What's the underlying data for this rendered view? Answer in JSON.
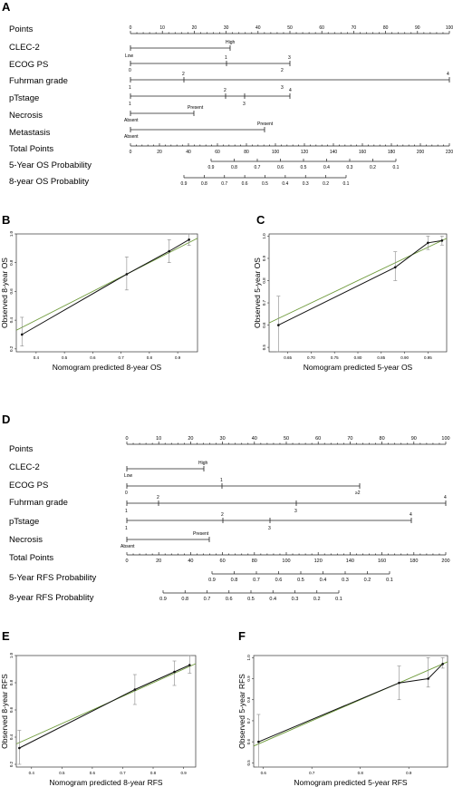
{
  "panels": {
    "A": "A",
    "B": "B",
    "C": "C",
    "D": "D",
    "E": "E",
    "F": "F"
  },
  "nomogram_os": {
    "rows": {
      "points": "Points",
      "clec2": "CLEC-2",
      "ecog": "ECOG PS",
      "fuhrman": "Fuhrman grade",
      "ptstage": "pTstage",
      "necrosis": "Necrosis",
      "metastasis": "Metastasis",
      "total": "Total Points",
      "os5": "5-Year OS Probability",
      "os8": "8-year OS Probablity"
    },
    "points_ticks": [
      "0",
      "10",
      "20",
      "30",
      "40",
      "50",
      "60",
      "70",
      "80",
      "90",
      "100"
    ],
    "total_ticks": [
      "0",
      "20",
      "40",
      "60",
      "80",
      "100",
      "120",
      "140",
      "160",
      "180",
      "200",
      "220"
    ],
    "clec2_labels": {
      "low": "Low",
      "high": "High"
    },
    "ecog_labels": [
      "0",
      "1",
      "2",
      "3"
    ],
    "fuhrman_labels": [
      "1",
      "2",
      "3",
      "4"
    ],
    "ptstage_labels": [
      "1",
      "2",
      "3",
      "4"
    ],
    "necrosis_labels": {
      "absent": "Absent",
      "present": "Present"
    },
    "metastasis_labels": {
      "absent": "Absent",
      "present": "Present"
    },
    "os5_ticks": [
      "0.9",
      "0.8",
      "0.7",
      "0.6",
      "0.5",
      "0.4",
      "0.3",
      "0.2",
      "0.1"
    ],
    "os8_ticks": [
      "0.9",
      "0.8",
      "0.7",
      "0.6",
      "0.5",
      "0.4",
      "0.3",
      "0.2",
      "0.1"
    ]
  },
  "nomogram_rfs": {
    "rows": {
      "points": "Points",
      "clec2": "CLEC-2",
      "ecog": "ECOG PS",
      "fuhrman": "Fuhrman grade",
      "ptstage": "pTstage",
      "necrosis": "Necrosis",
      "total": "Total Points",
      "rfs5": "5-Year RFS Probability",
      "rfs8": "8-year RFS Probablity"
    },
    "points_ticks": [
      "0",
      "10",
      "20",
      "30",
      "40",
      "50",
      "60",
      "70",
      "80",
      "90",
      "100"
    ],
    "total_ticks": [
      "0",
      "20",
      "40",
      "60",
      "80",
      "100",
      "120",
      "140",
      "160",
      "180",
      "200"
    ],
    "clec2_labels": {
      "low": "Low",
      "high": "High"
    },
    "ecog_labels": [
      "0",
      "1",
      "≥2"
    ],
    "fuhrman_labels": [
      "1",
      "2",
      "3",
      "4"
    ],
    "ptstage_labels": [
      "1",
      "2",
      "3",
      "4"
    ],
    "necrosis_labels": {
      "absent": "Absent",
      "present": "Present"
    },
    "rfs5_ticks": [
      "0.9",
      "0.8",
      "0.7",
      "0.6",
      "0.5",
      "0.4",
      "0.3",
      "0.2",
      "0.1"
    ],
    "rfs8_ticks": [
      "0.9",
      "0.8",
      "0.7",
      "0.6",
      "0.5",
      "0.4",
      "0.3",
      "0.2",
      "0.1"
    ]
  },
  "chart_data": [
    {
      "panel": "B",
      "type": "line",
      "xlabel": "Nomogram predicted 8-year OS",
      "ylabel": "Observed 8-year OS",
      "xlim": [
        0.33,
        0.97
      ],
      "ylim": [
        0.18,
        1.0
      ],
      "xticks": [
        "0.4",
        "0.5",
        "0.6",
        "0.7",
        "0.8",
        "0.9"
      ],
      "yticks": [
        "0.2",
        "0.4",
        "0.6",
        "0.8",
        "1.0"
      ],
      "points": [
        [
          0.35,
          0.3
        ],
        [
          0.72,
          0.72
        ],
        [
          0.87,
          0.88
        ],
        [
          0.94,
          0.96
        ]
      ],
      "errors": [
        [
          0.22,
          0.42
        ],
        [
          0.61,
          0.84
        ],
        [
          0.8,
          0.96
        ],
        [
          0.92,
          1.0
        ]
      ],
      "ideal_line": [
        [
          0.33,
          0.33
        ],
        [
          0.97,
          0.97
        ]
      ]
    },
    {
      "panel": "C",
      "type": "line",
      "xlabel": "Nomogram predicted 5-year OS",
      "ylabel": "Observed 5-year OS",
      "xlim": [
        0.61,
        0.99
      ],
      "ylim": [
        0.48,
        1.01
      ],
      "xticks": [
        "0.65",
        "0.70",
        "0.75",
        "0.80",
        "0.85",
        "0.90",
        "0.95"
      ],
      "yticks": [
        "0.5",
        "0.6",
        "0.7",
        "0.8",
        "0.9",
        "1.0"
      ],
      "points": [
        [
          0.63,
          0.6
        ],
        [
          0.88,
          0.86
        ],
        [
          0.95,
          0.97
        ],
        [
          0.98,
          0.98
        ]
      ],
      "errors": [
        [
          0.48,
          0.73
        ],
        [
          0.8,
          0.93
        ],
        [
          0.94,
          1.0
        ],
        [
          0.96,
          1.0
        ]
      ],
      "ideal_line": [
        [
          0.61,
          0.61
        ],
        [
          0.99,
          0.99
        ]
      ]
    },
    {
      "panel": "E",
      "type": "line",
      "xlabel": "Nomogram predicted 8-year RFS",
      "ylabel": "Observed 8-year RFS",
      "xlim": [
        0.35,
        0.94
      ],
      "ylim": [
        0.18,
        1.0
      ],
      "xticks": [
        "0.4",
        "0.5",
        "0.6",
        "0.7",
        "0.8",
        "0.9"
      ],
      "yticks": [
        "0.2",
        "0.4",
        "0.6",
        "0.8",
        "1.0"
      ],
      "points": [
        [
          0.36,
          0.32
        ],
        [
          0.74,
          0.75
        ],
        [
          0.87,
          0.88
        ],
        [
          0.92,
          0.93
        ]
      ],
      "errors": [
        [
          0.2,
          0.45
        ],
        [
          0.64,
          0.86
        ],
        [
          0.78,
          0.96
        ],
        [
          0.87,
          1.0
        ]
      ],
      "ideal_line": [
        [
          0.35,
          0.35
        ],
        [
          0.94,
          0.94
        ]
      ]
    },
    {
      "panel": "F",
      "type": "line",
      "xlabel": "Nomogram predicted 5-year RFS",
      "ylabel": "Observed 5-year RFS",
      "xlim": [
        0.58,
        0.98
      ],
      "ylim": [
        0.48,
        1.01
      ],
      "xticks": [
        "0.6",
        "0.7",
        "0.8",
        "0.9"
      ],
      "yticks": [
        "0.5",
        "0.6",
        "0.7",
        "0.8",
        "0.9",
        "1.0"
      ],
      "points": [
        [
          0.59,
          0.6
        ],
        [
          0.88,
          0.88
        ],
        [
          0.94,
          0.9
        ],
        [
          0.97,
          0.97
        ]
      ],
      "errors": [
        [
          0.48,
          0.73
        ],
        [
          0.8,
          0.96
        ],
        [
          0.86,
          1.0
        ],
        [
          0.95,
          1.0
        ]
      ],
      "ideal_line": [
        [
          0.58,
          0.58
        ],
        [
          0.98,
          0.98
        ]
      ]
    }
  ]
}
